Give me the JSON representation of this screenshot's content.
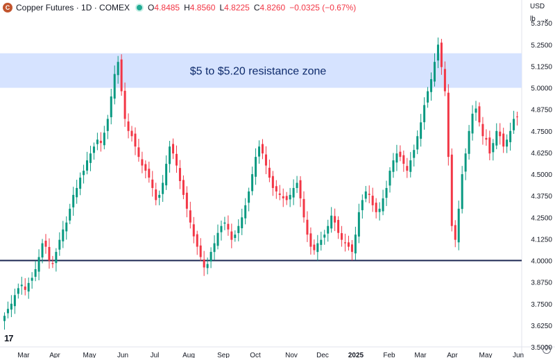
{
  "header": {
    "symbol": "Copper Futures · 1D · COMEX",
    "logo_icon": "copper-coin-icon",
    "open_label": "O",
    "open": "4.8485",
    "high_label": "H",
    "high": "4.8560",
    "low_label": "L",
    "low": "4.8225",
    "close_label": "C",
    "close": "4.8260",
    "change": "−0.0325 (−0.67%)"
  },
  "controls": {
    "currency": "USD",
    "unit": "lb"
  },
  "colors": {
    "up": "#089981",
    "down": "#f23645",
    "zone": "#d6e3ff",
    "support": "#1a2550",
    "annotation": "#0d2a6b"
  },
  "chart_data": {
    "type": "candlestick",
    "annotation": "$5 to $5.20 resistance zone",
    "resistance_zone": [
      5.0,
      5.2
    ],
    "support_level": 4.0,
    "ylim": [
      3.5,
      5.42
    ],
    "y_ticks": [
      "5.3750",
      "5.2500",
      "5.1250",
      "5.0000",
      "4.8750",
      "4.7500",
      "4.6250",
      "4.5000",
      "4.3750",
      "4.2500",
      "4.1250",
      "4.0000",
      "3.8750",
      "3.7500",
      "3.6250",
      "3.5000"
    ],
    "x_labels": [
      "Mar",
      "Apr",
      "May",
      "Jun",
      "Jul",
      "Aug",
      "Sep",
      "Oct",
      "Nov",
      "Dec",
      "2025",
      "Feb",
      "Mar",
      "Apr",
      "May",
      "Jun"
    ],
    "series_close": [
      3.68,
      3.72,
      3.75,
      3.8,
      3.84,
      3.86,
      3.83,
      3.87,
      3.9,
      3.95,
      4.02,
      4.1,
      4.08,
      4.0,
      3.98,
      4.05,
      4.12,
      4.18,
      4.22,
      4.3,
      4.38,
      4.42,
      4.48,
      4.52,
      4.58,
      4.62,
      4.66,
      4.7,
      4.68,
      4.74,
      4.82,
      4.95,
      5.08,
      5.15,
      4.98,
      4.82,
      4.75,
      4.72,
      4.66,
      4.6,
      4.55,
      4.52,
      4.48,
      4.42,
      4.35,
      4.38,
      4.45,
      4.56,
      4.66,
      4.62,
      4.55,
      4.46,
      4.38,
      4.3,
      4.22,
      4.14,
      4.08,
      4.02,
      3.96,
      3.98,
      4.05,
      4.1,
      4.16,
      4.2,
      4.22,
      4.18,
      4.12,
      4.15,
      4.2,
      4.25,
      4.32,
      4.4,
      4.5,
      4.6,
      4.66,
      4.62,
      4.55,
      4.48,
      4.42,
      4.4,
      4.38,
      4.36,
      4.35,
      4.38,
      4.42,
      4.45,
      4.36,
      4.25,
      4.15,
      4.08,
      4.06,
      4.1,
      4.12,
      4.15,
      4.2,
      4.26,
      4.22,
      4.16,
      4.12,
      4.1,
      4.08,
      4.05,
      4.15,
      4.28,
      4.35,
      4.4,
      4.38,
      4.32,
      4.28,
      4.3,
      4.36,
      4.42,
      4.52,
      4.58,
      4.62,
      4.6,
      4.56,
      4.52,
      4.58,
      4.64,
      4.72,
      4.8,
      4.9,
      4.98,
      5.05,
      5.15,
      5.25,
      5.12,
      4.98,
      4.6,
      4.2,
      4.12,
      4.3,
      4.5,
      4.62,
      4.75,
      4.85,
      4.88,
      4.8,
      4.72,
      4.7,
      4.62,
      4.68,
      4.75,
      4.72,
      4.66,
      4.7,
      4.75,
      4.82,
      4.83
    ]
  }
}
